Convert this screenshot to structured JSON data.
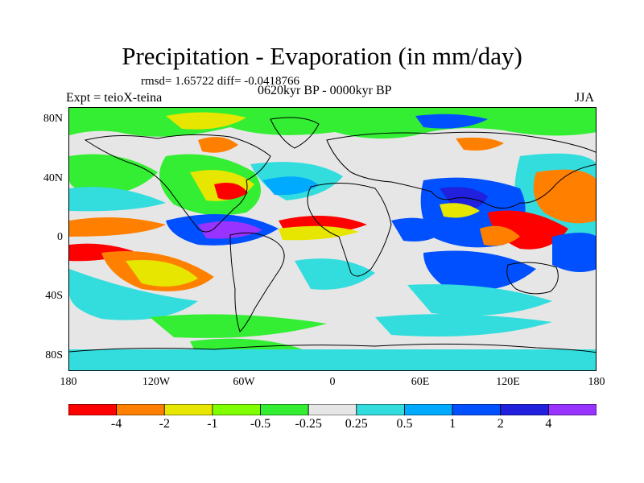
{
  "title": "Precipitation - Evaporation (in mm/day)",
  "stats": "rmsd= 1.65722 diff= -0.0418766",
  "period": "0620kyr BP - 0000kyr BP",
  "experiment": "Expt = teioX-teina",
  "season": "JJA",
  "lat_labels": [
    "80N",
    "40N",
    "0",
    "40S",
    "80S"
  ],
  "lon_labels": [
    "180",
    "120W",
    "60W",
    "0",
    "60E",
    "120E",
    "180"
  ],
  "colorbar": {
    "labels": [
      "-4",
      "-2",
      "-1",
      "-0.5",
      "-0.25",
      "0.25",
      "0.5",
      "1",
      "2",
      "4"
    ],
    "colors": [
      "#ff0000",
      "#ff8000",
      "#e6e600",
      "#80ff00",
      "#33ee33",
      "#e6e6e6",
      "#33dddd",
      "#00aaff",
      "#0050ff",
      "#2020dd",
      "#9933ff"
    ]
  },
  "map_colors": {
    "neutral": "#e6e6e6",
    "coast": "#000000"
  }
}
